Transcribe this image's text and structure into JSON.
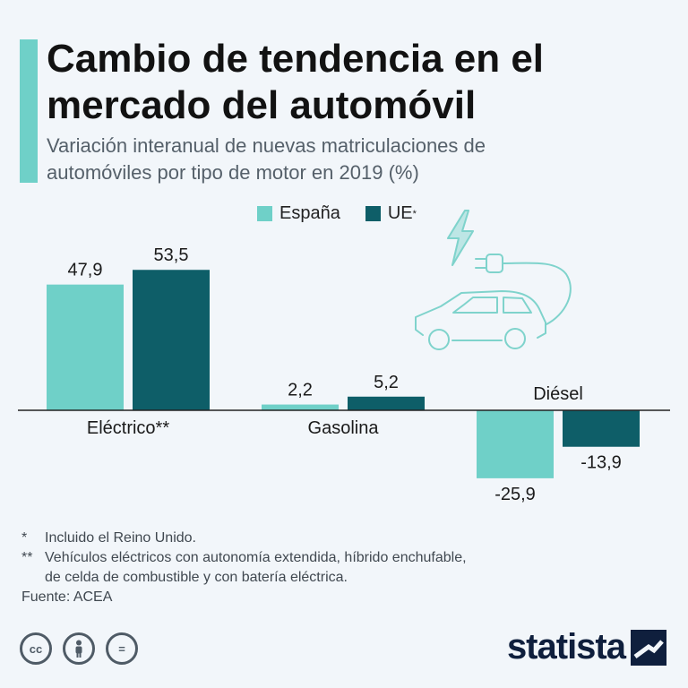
{
  "header": {
    "title": "Cambio de tendencia en el mercado del automóvil",
    "subtitle": "Variación interanual de nuevas matriculaciones de automóviles por tipo de motor en 2019 (%)"
  },
  "legend": {
    "items": [
      {
        "label": "España",
        "color": "#6fd0c8"
      },
      {
        "label": "UE",
        "mark": "*",
        "color": "#0e5e68"
      }
    ]
  },
  "chart_data": {
    "type": "bar",
    "title": "Cambio de tendencia en el mercado del automóvil",
    "subtitle": "Variación interanual de nuevas matriculaciones de automóviles por tipo de motor en 2019 (%)",
    "categories": [
      "Eléctrico**",
      "Gasolina",
      "Diésel"
    ],
    "series": [
      {
        "name": "España",
        "color": "#6fd0c8",
        "values": [
          47.9,
          2.2,
          -25.9
        ],
        "labels": [
          "47,9",
          "2,2",
          "-25,9"
        ]
      },
      {
        "name": "UE*",
        "color": "#0e5e68",
        "values": [
          53.5,
          5.2,
          -13.9
        ],
        "labels": [
          "53,5",
          "5,2",
          "-13,9"
        ]
      }
    ],
    "ylim": [
      -30,
      60
    ],
    "grid": false,
    "legend_position": "top-center"
  },
  "illustration": {
    "icon": "electric-car-charging-icon",
    "stroke_color": "#7fd3cc"
  },
  "footnotes": {
    "note1_mark": "*",
    "note1": "Incluido el Reino Unido.",
    "note2_mark": "**",
    "note2_line1": "Vehículos eléctricos con autonomía extendida, híbrido enchufable,",
    "note2_line2": "de celda de combustible y con batería eléctrica.",
    "source": "Fuente: ACEA"
  },
  "license": {
    "cc": "cc",
    "by": "by-person-icon",
    "nd": "="
  },
  "brand": {
    "name": "statista",
    "color": "#0f1f3d"
  }
}
